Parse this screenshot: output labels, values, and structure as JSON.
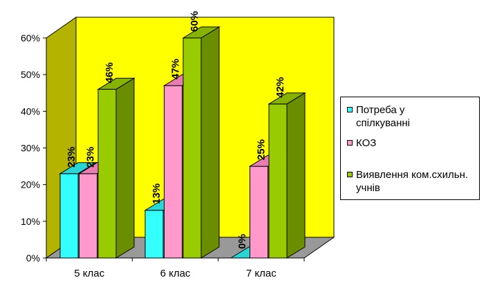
{
  "chart_data": {
    "type": "bar",
    "categories": [
      "5 клас",
      "6 клас",
      "7 клас"
    ],
    "series": [
      {
        "name": "Потреба у спілкуванні",
        "values": [
          23,
          13,
          0
        ],
        "labels": [
          "23%",
          "13%",
          "0%"
        ],
        "color": "#33FFFF",
        "side": "#22BBBB",
        "topc": "#29D6D6"
      },
      {
        "name": "КОЗ",
        "values": [
          23,
          47,
          25
        ],
        "labels": [
          "23%",
          "47%",
          "25%"
        ],
        "color": "#FF99CC",
        "side": "#CC6699",
        "topc": "#E87DB4"
      },
      {
        "name": "Виявлення ком.схильн. учнів",
        "values": [
          46,
          60,
          42
        ],
        "labels": [
          "46%",
          "60%",
          "42%"
        ],
        "color": "#99CC00",
        "side": "#6B8E00",
        "topc": "#85B300"
      }
    ],
    "yticks": [
      "0%",
      "10%",
      "20%",
      "30%",
      "40%",
      "50%",
      "60%"
    ],
    "ylim": [
      0,
      60
    ],
    "grid": false,
    "legend": "right",
    "colors": {
      "back_wall": "#FFFF00",
      "side_wall": "#B3B300",
      "floor": "#999999"
    }
  }
}
